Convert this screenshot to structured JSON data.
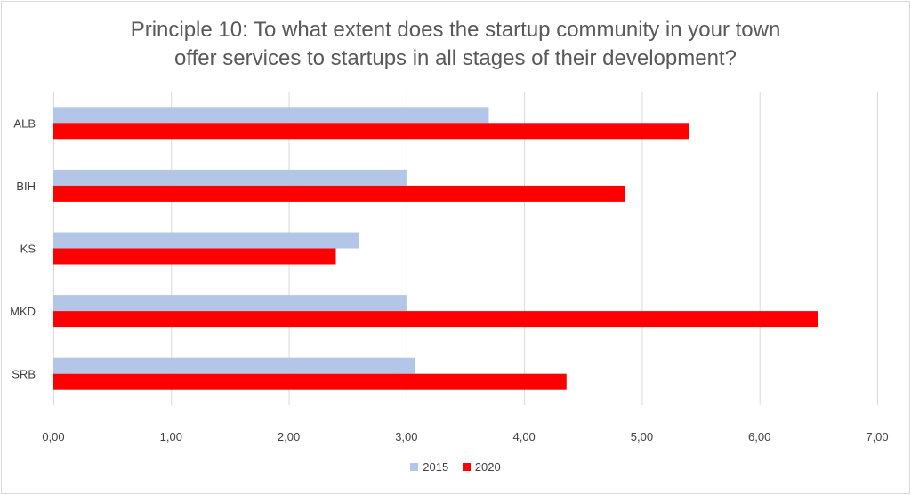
{
  "chart_data": {
    "type": "bar",
    "orientation": "horizontal",
    "title": "Principle 10: To what extent does the startup community in your town offer services to startups in all stages of their development?",
    "title_lines": [
      "Principle 10: To what extent does the startup community in your town",
      "offer services to startups in all stages of their development?"
    ],
    "categories": [
      "ALB",
      "BIH",
      "KS",
      "MKD",
      "SRB"
    ],
    "series": [
      {
        "name": "2015",
        "color": "#b4c6e7",
        "values": [
          3.7,
          3.0,
          2.6,
          3.0,
          3.07
        ]
      },
      {
        "name": "2020",
        "color": "#ff0000",
        "values": [
          5.4,
          4.86,
          2.4,
          6.5,
          4.36
        ]
      }
    ],
    "xlim": [
      0,
      7
    ],
    "x_ticks": [
      0,
      1,
      2,
      3,
      4,
      5,
      6,
      7
    ],
    "x_tick_labels": [
      "0,00",
      "1,00",
      "2,00",
      "3,00",
      "4,00",
      "5,00",
      "6,00",
      "7,00"
    ],
    "grid": true,
    "legend_position": "bottom"
  }
}
